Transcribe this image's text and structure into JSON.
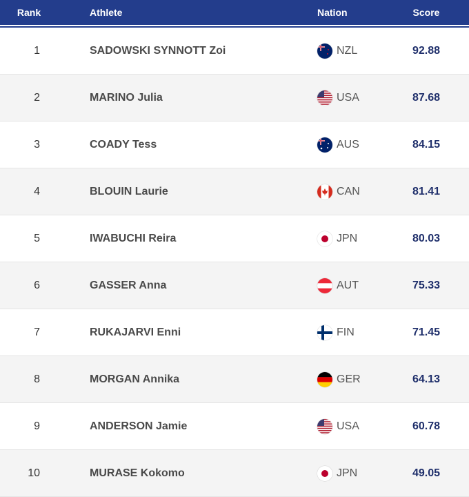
{
  "header": {
    "rank": "Rank",
    "athlete": "Athlete",
    "nation": "Nation",
    "score": "Score"
  },
  "colors": {
    "header_bg": "#233d8c",
    "score_text": "#1f2f6b"
  },
  "rows": [
    {
      "rank": "1",
      "athlete": "SADOWSKI SYNNOTT Zoi",
      "nation": "NZL",
      "flag": "flag-nzl",
      "score": "92.88"
    },
    {
      "rank": "2",
      "athlete": "MARINO Julia",
      "nation": "USA",
      "flag": "flag-usa",
      "score": "87.68"
    },
    {
      "rank": "3",
      "athlete": "COADY Tess",
      "nation": "AUS",
      "flag": "flag-aus",
      "score": "84.15"
    },
    {
      "rank": "4",
      "athlete": "BLOUIN Laurie",
      "nation": "CAN",
      "flag": "flag-can",
      "score": "81.41"
    },
    {
      "rank": "5",
      "athlete": "IWABUCHI Reira",
      "nation": "JPN",
      "flag": "flag-jpn",
      "score": "80.03"
    },
    {
      "rank": "6",
      "athlete": "GASSER Anna",
      "nation": "AUT",
      "flag": "flag-aut",
      "score": "75.33"
    },
    {
      "rank": "7",
      "athlete": "RUKAJARVI Enni",
      "nation": "FIN",
      "flag": "flag-fin",
      "score": "71.45"
    },
    {
      "rank": "8",
      "athlete": "MORGAN Annika",
      "nation": "GER",
      "flag": "flag-ger",
      "score": "64.13"
    },
    {
      "rank": "9",
      "athlete": "ANDERSON Jamie",
      "nation": "USA",
      "flag": "flag-usa",
      "score": "60.78"
    },
    {
      "rank": "10",
      "athlete": "MURASE Kokomo",
      "nation": "JPN",
      "flag": "flag-jpn",
      "score": "49.05"
    }
  ]
}
